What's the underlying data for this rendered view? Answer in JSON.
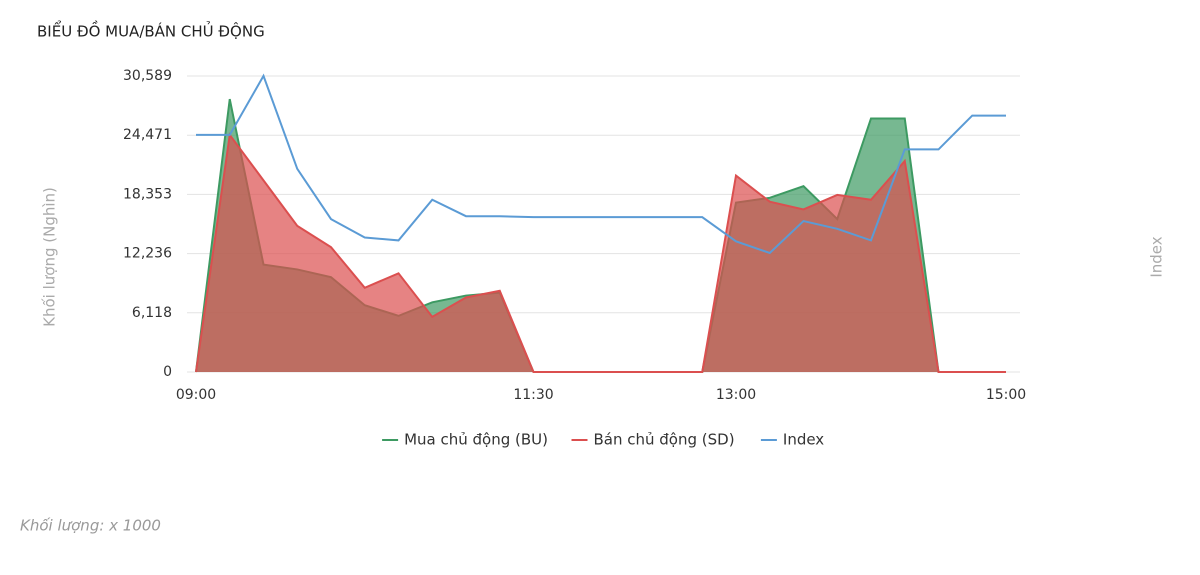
{
  "chart_data": {
    "type": "area",
    "title": "BIỂU ĐỒ MUA/BÁN CHỦ ĐỘNG",
    "y_label": "Khối lượng (Nghìn)",
    "y2_label": "Index",
    "note": "Khối lượng: x 1000",
    "categories": [
      "09:00",
      null,
      null,
      null,
      null,
      null,
      null,
      null,
      null,
      null,
      "11:30",
      null,
      null,
      null,
      null,
      null,
      "13:00",
      null,
      null,
      null,
      null,
      null,
      null,
      null,
      "15:00"
    ],
    "ylim": [
      0,
      30589
    ],
    "yticks": [
      0,
      {
        "value": 6118,
        "label": "6,118"
      },
      {
        "value": 12236,
        "label": "12,236"
      },
      {
        "value": 18353,
        "label": "18,353"
      },
      {
        "value": 24471,
        "label": "24,471"
      },
      {
        "value": 30589,
        "label": "30,589"
      }
    ],
    "grid": true,
    "series": [
      {
        "name": "Mua chủ động (BU)",
        "color": "#3d9a62",
        "style": "area",
        "values": [
          0,
          28200,
          11100,
          10600,
          9800,
          6900,
          5800,
          7200,
          7900,
          8200,
          0,
          0,
          0,
          0,
          0,
          0,
          17500,
          18000,
          19200,
          15800,
          26200,
          26200,
          0,
          0,
          0
        ]
      },
      {
        "name": "Bán chủ động (SD)",
        "color": "#db4f4f",
        "style": "area",
        "values": [
          0,
          24500,
          19800,
          15100,
          12900,
          8700,
          10200,
          5700,
          7700,
          8400,
          0,
          0,
          0,
          0,
          0,
          0,
          20300,
          17600,
          16800,
          18300,
          17800,
          21800,
          0,
          0,
          0
        ]
      },
      {
        "name": "Index",
        "color": "#5b9bd5",
        "style": "line",
        "values": [
          24500,
          24500,
          30600,
          21000,
          15800,
          13900,
          13600,
          17800,
          16100,
          16100,
          16000,
          16000,
          16000,
          16000,
          16000,
          16000,
          13500,
          12300,
          15600,
          14800,
          13600,
          23000,
          23000,
          26500,
          26500
        ]
      }
    ]
  }
}
